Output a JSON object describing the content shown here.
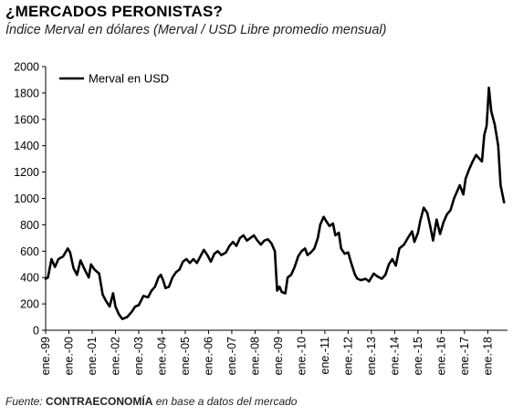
{
  "header": {
    "title": "¿MERCADOS PERONISTAS?",
    "subtitle": "Índice Merval en dólares (Merval / USD Libre promedio mensual)"
  },
  "footer": {
    "prefix": "Fuente: ",
    "source": "CONTRAECONOMÍA",
    "suffix": " en base a datos del mercado"
  },
  "chart_data": {
    "type": "line",
    "title": "¿MERCADOS PERONISTAS?",
    "subtitle": "Índice Merval en dólares (Merval / USD Libre promedio mensual)",
    "xlabel": "",
    "ylabel": "",
    "ylim": [
      0,
      2000
    ],
    "yticks": [
      "0",
      "200",
      "400",
      "600",
      "800",
      "1000",
      "1200",
      "1400",
      "1600",
      "1800",
      "2000"
    ],
    "xticks": [
      "ene.-99",
      "ene.-00",
      "ene.-01",
      "ene.-02",
      "ene.-03",
      "ene.-04",
      "ene.-05",
      "ene.-06",
      "ene.-07",
      "ene.-08",
      "ene.-09",
      "ene.-10",
      "ene.-11",
      "ene.-12",
      "ene.-13",
      "ene.-14",
      "ene.-15",
      "ene.-16",
      "ene.-17",
      "ene.-18"
    ],
    "grid": false,
    "legend": {
      "position": "top-left",
      "entries": [
        "Merval en USD"
      ]
    },
    "series": [
      {
        "name": "Merval en USD",
        "color": "#000000",
        "points": [
          [
            1999.0,
            390
          ],
          [
            1999.1,
            400
          ],
          [
            1999.25,
            540
          ],
          [
            1999.4,
            480
          ],
          [
            1999.55,
            540
          ],
          [
            1999.75,
            560
          ],
          [
            1999.95,
            620
          ],
          [
            2000.05,
            590
          ],
          [
            2000.2,
            470
          ],
          [
            2000.35,
            420
          ],
          [
            2000.5,
            530
          ],
          [
            2000.65,
            470
          ],
          [
            2000.85,
            400
          ],
          [
            2000.95,
            500
          ],
          [
            2001.1,
            460
          ],
          [
            2001.3,
            430
          ],
          [
            2001.45,
            270
          ],
          [
            2001.6,
            220
          ],
          [
            2001.75,
            180
          ],
          [
            2001.9,
            280
          ],
          [
            2002.0,
            180
          ],
          [
            2002.15,
            120
          ],
          [
            2002.3,
            85
          ],
          [
            2002.5,
            100
          ],
          [
            2002.7,
            140
          ],
          [
            2002.85,
            180
          ],
          [
            2003.0,
            190
          ],
          [
            2003.2,
            260
          ],
          [
            2003.4,
            250
          ],
          [
            2003.55,
            300
          ],
          [
            2003.7,
            330
          ],
          [
            2003.85,
            400
          ],
          [
            2003.95,
            420
          ],
          [
            2004.05,
            380
          ],
          [
            2004.15,
            320
          ],
          [
            2004.3,
            330
          ],
          [
            2004.45,
            400
          ],
          [
            2004.6,
            440
          ],
          [
            2004.75,
            460
          ],
          [
            2004.9,
            520
          ],
          [
            2005.05,
            540
          ],
          [
            2005.2,
            510
          ],
          [
            2005.35,
            540
          ],
          [
            2005.5,
            510
          ],
          [
            2005.65,
            560
          ],
          [
            2005.8,
            610
          ],
          [
            2005.95,
            570
          ],
          [
            2006.1,
            520
          ],
          [
            2006.25,
            580
          ],
          [
            2006.4,
            600
          ],
          [
            2006.55,
            570
          ],
          [
            2006.75,
            590
          ],
          [
            2006.9,
            640
          ],
          [
            2007.05,
            670
          ],
          [
            2007.2,
            640
          ],
          [
            2007.35,
            700
          ],
          [
            2007.5,
            720
          ],
          [
            2007.65,
            680
          ],
          [
            2007.8,
            700
          ],
          [
            2007.95,
            720
          ],
          [
            2008.1,
            680
          ],
          [
            2008.25,
            650
          ],
          [
            2008.4,
            680
          ],
          [
            2008.55,
            690
          ],
          [
            2008.7,
            660
          ],
          [
            2008.85,
            600
          ],
          [
            2008.95,
            300
          ],
          [
            2009.05,
            330
          ],
          [
            2009.15,
            290
          ],
          [
            2009.3,
            280
          ],
          [
            2009.4,
            400
          ],
          [
            2009.55,
            420
          ],
          [
            2009.7,
            480
          ],
          [
            2009.85,
            560
          ],
          [
            2010.0,
            600
          ],
          [
            2010.15,
            620
          ],
          [
            2010.25,
            570
          ],
          [
            2010.4,
            590
          ],
          [
            2010.55,
            620
          ],
          [
            2010.7,
            700
          ],
          [
            2010.8,
            800
          ],
          [
            2010.95,
            860
          ],
          [
            2011.05,
            830
          ],
          [
            2011.2,
            790
          ],
          [
            2011.35,
            810
          ],
          [
            2011.45,
            720
          ],
          [
            2011.6,
            740
          ],
          [
            2011.7,
            620
          ],
          [
            2011.85,
            580
          ],
          [
            2012.0,
            590
          ],
          [
            2012.15,
            500
          ],
          [
            2012.3,
            420
          ],
          [
            2012.4,
            390
          ],
          [
            2012.55,
            380
          ],
          [
            2012.75,
            390
          ],
          [
            2012.9,
            370
          ],
          [
            2013.1,
            430
          ],
          [
            2013.25,
            410
          ],
          [
            2013.45,
            390
          ],
          [
            2013.6,
            420
          ],
          [
            2013.75,
            500
          ],
          [
            2013.9,
            540
          ],
          [
            2014.05,
            490
          ],
          [
            2014.2,
            620
          ],
          [
            2014.4,
            650
          ],
          [
            2014.6,
            710
          ],
          [
            2014.75,
            750
          ],
          [
            2014.85,
            670
          ],
          [
            2015.0,
            740
          ],
          [
            2015.1,
            830
          ],
          [
            2015.25,
            930
          ],
          [
            2015.4,
            890
          ],
          [
            2015.55,
            770
          ],
          [
            2015.65,
            680
          ],
          [
            2015.8,
            840
          ],
          [
            2015.95,
            730
          ],
          [
            2016.1,
            820
          ],
          [
            2016.25,
            880
          ],
          [
            2016.4,
            910
          ],
          [
            2016.55,
            1000
          ],
          [
            2016.7,
            1060
          ],
          [
            2016.8,
            1100
          ],
          [
            2016.95,
            1030
          ],
          [
            2017.05,
            1150
          ],
          [
            2017.2,
            1220
          ],
          [
            2017.35,
            1280
          ],
          [
            2017.5,
            1330
          ],
          [
            2017.65,
            1300
          ],
          [
            2017.75,
            1280
          ],
          [
            2017.85,
            1480
          ],
          [
            2017.95,
            1550
          ],
          [
            2018.05,
            1840
          ],
          [
            2018.15,
            1660
          ],
          [
            2018.3,
            1560
          ],
          [
            2018.45,
            1400
          ],
          [
            2018.55,
            1100
          ],
          [
            2018.7,
            970
          ]
        ]
      }
    ]
  }
}
